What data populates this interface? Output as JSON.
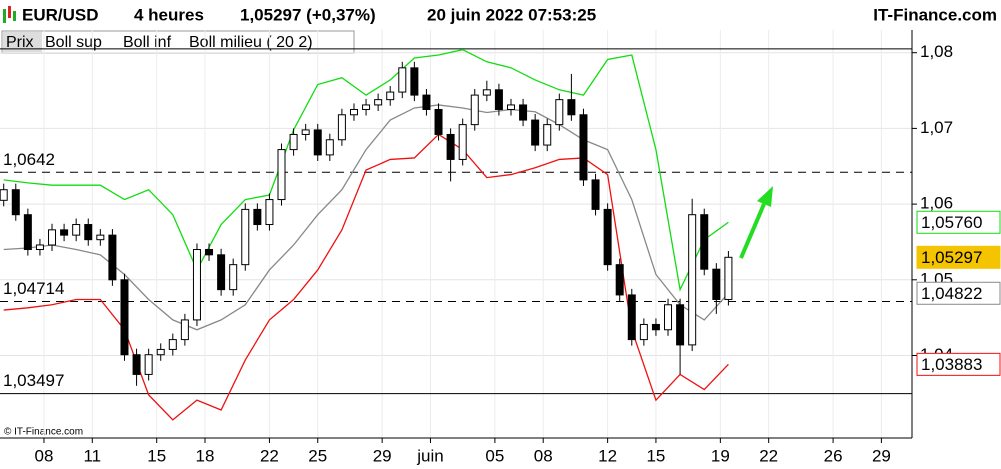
{
  "chart_data": {
    "type": "candlestick",
    "symbol": "EUR/USD",
    "period": "4 heures",
    "last_quote": "1,05297 (+0,37%)",
    "timestamp": "20 juin 2022 07:53:25",
    "source": "IT-Finance.com",
    "copyright": "© IT-Finance.com",
    "grid": true,
    "xlim": [
      5.27,
      61.9
    ],
    "xticks": [
      {
        "value": 8,
        "label": "08"
      },
      11,
      15,
      18,
      22,
      25,
      29,
      {
        "value": 32,
        "label": "juin"
      },
      {
        "value": 36,
        "label": "05"
      },
      {
        "value": 39,
        "label": "08"
      },
      {
        "value": 43,
        "label": "12"
      },
      {
        "value": 46,
        "label": "15"
      },
      {
        "value": 50,
        "label": "19"
      },
      {
        "value": 53,
        "label": "22"
      },
      {
        "value": 57,
        "label": "26"
      },
      {
        "value": 60,
        "label": "29"
      }
    ],
    "ylim": [
      1.0291,
      1.083
    ],
    "yticks": [
      {
        "value": 1.08,
        "label": "1,08"
      },
      {
        "value": 1.07,
        "label": "1,07"
      },
      {
        "value": 1.06,
        "label": "1,06"
      },
      {
        "value": 1.05,
        "label": "1,05"
      },
      {
        "value": 1.04,
        "label": "1,04"
      }
    ],
    "candles": {
      "name": "Prix",
      "up_color": "#ffffff",
      "down_color": "#000000",
      "last_label": "1,05297",
      "label_color": "#f5c400",
      "x": [
        5.5,
        6.25,
        7,
        7.75,
        8.5,
        9.25,
        10,
        10.75,
        11.5,
        12.25,
        13,
        13.75,
        14.5,
        15.25,
        16,
        16.75,
        17.5,
        18.25,
        19,
        19.75,
        20.5,
        21.25,
        22,
        22.75,
        23.5,
        24.25,
        25,
        25.75,
        26.5,
        27.25,
        28,
        28.75,
        29.5,
        30.25,
        31,
        31.75,
        32.5,
        33.25,
        34,
        34.75,
        35.5,
        36.25,
        37,
        37.75,
        38.5,
        39.25,
        40,
        40.75,
        41.5,
        42.25,
        43,
        43.75,
        44.5,
        45.25,
        46,
        46.75,
        47.5,
        48.25,
        49,
        49.75,
        50.5
      ],
      "open": [
        1.0605,
        1.0619,
        1.0586,
        1.054,
        1.0546,
        1.0566,
        1.0559,
        1.0573,
        1.0553,
        1.0559,
        1.05,
        1.0401,
        1.0375,
        1.0401,
        1.0408,
        1.0421,
        1.0447,
        1.054,
        1.0533,
        1.0487,
        1.052,
        1.0593,
        1.0573,
        1.0606,
        1.0672,
        1.0692,
        1.0698,
        1.0665,
        1.0685,
        1.0718,
        1.0725,
        1.0731,
        1.0738,
        1.0748,
        1.078,
        1.0744,
        1.0725,
        1.0692,
        1.0659,
        1.0705,
        1.0744,
        1.0751,
        1.0725,
        1.0731,
        1.0711,
        1.0678,
        1.0705,
        1.0738,
        1.0718,
        1.0632,
        1.0593,
        1.052,
        1.048,
        1.0421,
        1.0441,
        1.0434,
        1.0467,
        1.0414,
        1.0586,
        1.0514,
        1.0474
      ],
      "high": [
        1.0627,
        1.0627,
        1.0594,
        1.0554,
        1.0574,
        1.0574,
        1.0581,
        1.0581,
        1.0567,
        1.0567,
        1.0508,
        1.0409,
        1.0409,
        1.0416,
        1.0429,
        1.0455,
        1.0548,
        1.0548,
        1.0541,
        1.0528,
        1.0601,
        1.0601,
        1.0614,
        1.068,
        1.07,
        1.0706,
        1.0706,
        1.0693,
        1.0726,
        1.0733,
        1.0739,
        1.0746,
        1.0756,
        1.0788,
        1.0788,
        1.0752,
        1.0733,
        1.07,
        1.0713,
        1.0752,
        1.0763,
        1.0759,
        1.0739,
        1.0739,
        1.0719,
        1.0713,
        1.0746,
        1.0772,
        1.0726,
        1.064,
        1.0601,
        1.0528,
        1.0488,
        1.0449,
        1.0449,
        1.0475,
        1.0475,
        1.0607,
        1.0594,
        1.0522,
        1.0538
      ],
      "low": [
        1.0597,
        1.0578,
        1.0532,
        1.0532,
        1.0538,
        1.0551,
        1.0551,
        1.0545,
        1.0545,
        1.0492,
        1.0393,
        1.036,
        1.0367,
        1.0393,
        1.04,
        1.0413,
        1.0439,
        1.0525,
        1.0479,
        1.0479,
        1.0512,
        1.0565,
        1.0565,
        1.0598,
        1.0664,
        1.0684,
        1.0657,
        1.0657,
        1.0677,
        1.071,
        1.0717,
        1.0723,
        1.073,
        1.074,
        1.0736,
        1.0717,
        1.0684,
        1.063,
        1.0651,
        1.0697,
        1.0736,
        1.0717,
        1.0717,
        1.0703,
        1.067,
        1.067,
        1.0697,
        1.071,
        1.0624,
        1.0585,
        1.0512,
        1.0472,
        1.0413,
        1.0413,
        1.0426,
        1.0426,
        1.0375,
        1.0406,
        1.0506,
        1.0455,
        1.0466
      ],
      "close": [
        1.0619,
        1.0586,
        1.054,
        1.0546,
        1.0566,
        1.0559,
        1.0573,
        1.0553,
        1.0559,
        1.05,
        1.0401,
        1.0375,
        1.0401,
        1.0408,
        1.0421,
        1.0447,
        1.054,
        1.0533,
        1.0487,
        1.052,
        1.0593,
        1.0573,
        1.0606,
        1.0672,
        1.0692,
        1.0698,
        1.0665,
        1.0685,
        1.0718,
        1.0725,
        1.0731,
        1.0738,
        1.0748,
        1.078,
        1.0744,
        1.0725,
        1.0692,
        1.0659,
        1.0705,
        1.0744,
        1.0751,
        1.0725,
        1.0731,
        1.0711,
        1.0678,
        1.0705,
        1.0738,
        1.0718,
        1.0632,
        1.0593,
        1.052,
        1.048,
        1.0421,
        1.0441,
        1.0434,
        1.0467,
        1.0414,
        1.0586,
        1.0514,
        1.0474,
        1.05297
      ]
    },
    "series": [
      {
        "name": "Boll sup",
        "color": "#11dd11",
        "last_label": "1,05760",
        "x": [
          5.5,
          7,
          8.5,
          10,
          11.5,
          13,
          14.5,
          16,
          17.5,
          19,
          20.5,
          22,
          23.5,
          25,
          26.5,
          28,
          29.5,
          31,
          32.5,
          34,
          35.5,
          37,
          38.5,
          40,
          41.5,
          43,
          44.5,
          46,
          47.5,
          49,
          50.5
        ],
        "values": [
          1.0632,
          1.0628,
          1.0625,
          1.0625,
          1.0625,
          1.0606,
          1.0619,
          1.0586,
          1.0513,
          1.0573,
          1.0606,
          1.0612,
          1.0698,
          1.0758,
          1.0767,
          1.0744,
          1.0764,
          1.0793,
          1.0797,
          1.0804,
          1.0788,
          1.078,
          1.0764,
          1.0751,
          1.0744,
          1.0791,
          1.0797,
          1.0672,
          1.0487,
          1.0553,
          1.0576
        ]
      },
      {
        "name": "Boll inf",
        "color": "#ee1111",
        "last_label": "1,03883",
        "x": [
          5.5,
          7,
          8.5,
          10,
          11.5,
          13,
          14.5,
          16,
          17.5,
          19,
          20.5,
          22,
          23.5,
          25,
          26.5,
          28,
          29.5,
          31,
          32.5,
          34,
          35.5,
          37,
          38.5,
          40,
          41.5,
          43,
          44.5,
          46,
          47.5,
          49,
          50.5
        ],
        "values": [
          1.046,
          1.0463,
          1.0467,
          1.0474,
          1.0474,
          1.0434,
          1.0348,
          1.0315,
          1.0341,
          1.0328,
          1.0394,
          1.0447,
          1.0474,
          1.0513,
          1.0566,
          1.0645,
          1.0659,
          1.0661,
          1.0692,
          1.0672,
          1.0635,
          1.0639,
          1.0648,
          1.0659,
          1.0661,
          1.0639,
          1.0434,
          1.0341,
          1.0375,
          1.0355,
          1.03883
        ]
      },
      {
        "name": "Boll milieu ( 20 2)",
        "color": "#888888",
        "last_label": "1,04822",
        "x": [
          5.5,
          7,
          8.5,
          10,
          11.5,
          13,
          14.5,
          16,
          17.5,
          19,
          20.5,
          22,
          23.5,
          25,
          26.5,
          28,
          29.5,
          31,
          32.5,
          34,
          35.5,
          37,
          38.5,
          40,
          41.5,
          43,
          44.5,
          46,
          47.5,
          49,
          50.5
        ],
        "values": [
          1.054,
          1.0542,
          1.0546,
          1.054,
          1.0533,
          1.0507,
          1.0474,
          1.0447,
          1.0434,
          1.0447,
          1.0467,
          1.0513,
          1.0546,
          1.0586,
          1.0619,
          1.0672,
          1.0711,
          1.0727,
          1.0731,
          1.0727,
          1.0721,
          1.0725,
          1.0722,
          1.0705,
          1.0685,
          1.0672,
          1.0606,
          1.0507,
          1.0467,
          1.0447,
          1.04822
        ]
      }
    ],
    "levels": [
      {
        "value": 1.0805,
        "label": null,
        "style": "solid"
      },
      {
        "value": 1.0642,
        "label": "1,0642",
        "style": "dashed"
      },
      {
        "value": 1.04714,
        "label": "1,04714",
        "style": "dashed"
      },
      {
        "value": 1.03497,
        "label": "1,03497",
        "style": "solid"
      }
    ]
  }
}
